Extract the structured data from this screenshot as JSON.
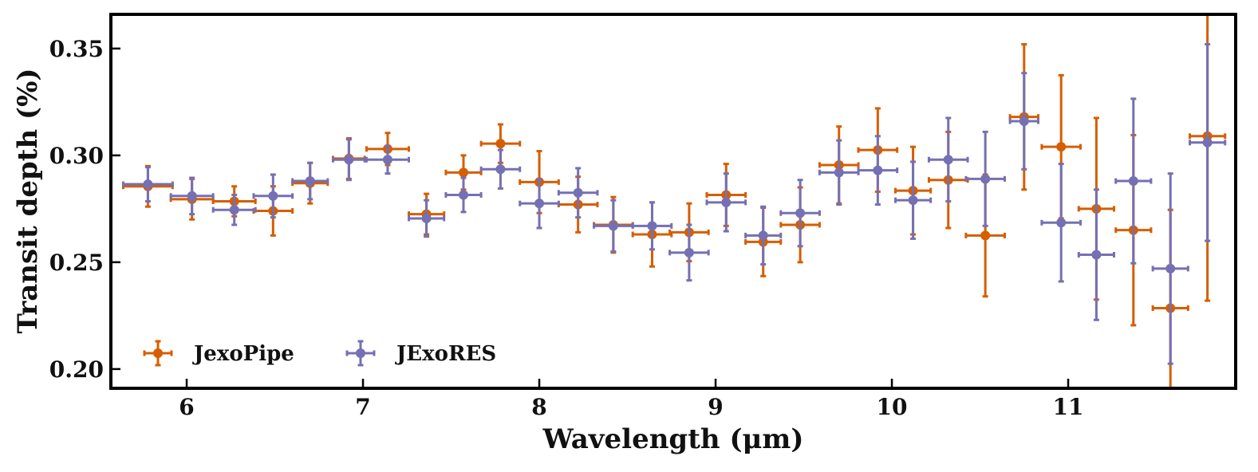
{
  "chart_data": {
    "type": "scatter",
    "xlabel": "Wavelength (μm)",
    "ylabel": "Transit depth (%)",
    "xlim": [
      5.57,
      11.95
    ],
    "ylim": [
      0.191,
      0.366
    ],
    "xticks": [
      6,
      7,
      8,
      9,
      10,
      11
    ],
    "xtick_labels": [
      "6",
      "7",
      "8",
      "9",
      "10",
      "11"
    ],
    "yticks": [
      0.2,
      0.25,
      0.3,
      0.35
    ],
    "ytick_labels": [
      "0.20",
      "0.25",
      "0.30",
      "0.35"
    ],
    "grid": false,
    "legend_position": "lower-left",
    "series": [
      {
        "name": "JexoPipe",
        "color": "#D55E00",
        "points": [
          {
            "x": 5.78,
            "y": 0.2855,
            "xerr": 0.14,
            "yerr": 0.0095
          },
          {
            "x": 6.03,
            "y": 0.2795,
            "xerr": 0.12,
            "yerr": 0.0095
          },
          {
            "x": 6.27,
            "y": 0.2785,
            "xerr": 0.12,
            "yerr": 0.007
          },
          {
            "x": 6.49,
            "y": 0.274,
            "xerr": 0.11,
            "yerr": 0.0115
          },
          {
            "x": 6.7,
            "y": 0.287,
            "xerr": 0.1,
            "yerr": 0.0095
          },
          {
            "x": 6.92,
            "y": 0.2985,
            "xerr": 0.09,
            "yerr": 0.0095
          },
          {
            "x": 7.14,
            "y": 0.303,
            "xerr": 0.12,
            "yerr": 0.0075
          },
          {
            "x": 7.36,
            "y": 0.2725,
            "xerr": 0.1,
            "yerr": 0.0095
          },
          {
            "x": 7.57,
            "y": 0.292,
            "xerr": 0.1,
            "yerr": 0.008
          },
          {
            "x": 7.78,
            "y": 0.3055,
            "xerr": 0.11,
            "yerr": 0.009
          },
          {
            "x": 8.0,
            "y": 0.2875,
            "xerr": 0.11,
            "yerr": 0.0145
          },
          {
            "x": 8.22,
            "y": 0.277,
            "xerr": 0.11,
            "yerr": 0.013
          },
          {
            "x": 8.42,
            "y": 0.2675,
            "xerr": 0.11,
            "yerr": 0.013
          },
          {
            "x": 8.64,
            "y": 0.263,
            "xerr": 0.11,
            "yerr": 0.015
          },
          {
            "x": 8.85,
            "y": 0.264,
            "xerr": 0.11,
            "yerr": 0.0135
          },
          {
            "x": 9.06,
            "y": 0.2815,
            "xerr": 0.11,
            "yerr": 0.0145
          },
          {
            "x": 9.27,
            "y": 0.2595,
            "xerr": 0.1,
            "yerr": 0.016
          },
          {
            "x": 9.48,
            "y": 0.2675,
            "xerr": 0.11,
            "yerr": 0.0175
          },
          {
            "x": 9.7,
            "y": 0.2955,
            "xerr": 0.11,
            "yerr": 0.018
          },
          {
            "x": 9.92,
            "y": 0.3025,
            "xerr": 0.11,
            "yerr": 0.0195
          },
          {
            "x": 10.12,
            "y": 0.2835,
            "xerr": 0.1,
            "yerr": 0.0205
          },
          {
            "x": 10.32,
            "y": 0.2885,
            "xerr": 0.11,
            "yerr": 0.0225
          },
          {
            "x": 10.53,
            "y": 0.2625,
            "xerr": 0.11,
            "yerr": 0.0285
          },
          {
            "x": 10.75,
            "y": 0.318,
            "xerr": 0.08,
            "yerr": 0.034
          },
          {
            "x": 10.96,
            "y": 0.304,
            "xerr": 0.11,
            "yerr": 0.0335
          },
          {
            "x": 11.16,
            "y": 0.275,
            "xerr": 0.1,
            "yerr": 0.0425
          },
          {
            "x": 11.37,
            "y": 0.265,
            "xerr": 0.1,
            "yerr": 0.0445
          },
          {
            "x": 11.58,
            "y": 0.2285,
            "xerr": 0.1,
            "yerr": 0.046
          },
          {
            "x": 11.79,
            "y": 0.309,
            "xerr": 0.1,
            "yerr": 0.077
          }
        ]
      },
      {
        "name": "JExoRES",
        "color": "#7570B3",
        "points": [
          {
            "x": 5.78,
            "y": 0.2865,
            "xerr": 0.14,
            "yerr": 0.008
          },
          {
            "x": 6.03,
            "y": 0.281,
            "xerr": 0.12,
            "yerr": 0.0085
          },
          {
            "x": 6.27,
            "y": 0.2745,
            "xerr": 0.12,
            "yerr": 0.007
          },
          {
            "x": 6.49,
            "y": 0.281,
            "xerr": 0.11,
            "yerr": 0.01
          },
          {
            "x": 6.7,
            "y": 0.288,
            "xerr": 0.1,
            "yerr": 0.0085
          },
          {
            "x": 6.92,
            "y": 0.298,
            "xerr": 0.09,
            "yerr": 0.0095
          },
          {
            "x": 7.14,
            "y": 0.298,
            "xerr": 0.12,
            "yerr": 0.0065
          },
          {
            "x": 7.36,
            "y": 0.2705,
            "xerr": 0.1,
            "yerr": 0.0085
          },
          {
            "x": 7.57,
            "y": 0.2815,
            "xerr": 0.1,
            "yerr": 0.008
          },
          {
            "x": 7.78,
            "y": 0.2935,
            "xerr": 0.11,
            "yerr": 0.009
          },
          {
            "x": 8.0,
            "y": 0.2775,
            "xerr": 0.11,
            "yerr": 0.0115
          },
          {
            "x": 8.22,
            "y": 0.2825,
            "xerr": 0.11,
            "yerr": 0.0115
          },
          {
            "x": 8.42,
            "y": 0.267,
            "xerr": 0.11,
            "yerr": 0.012
          },
          {
            "x": 8.64,
            "y": 0.267,
            "xerr": 0.11,
            "yerr": 0.011
          },
          {
            "x": 8.85,
            "y": 0.2545,
            "xerr": 0.11,
            "yerr": 0.013
          },
          {
            "x": 9.06,
            "y": 0.278,
            "xerr": 0.11,
            "yerr": 0.0135
          },
          {
            "x": 9.27,
            "y": 0.2625,
            "xerr": 0.1,
            "yerr": 0.0135
          },
          {
            "x": 9.48,
            "y": 0.273,
            "xerr": 0.11,
            "yerr": 0.0155
          },
          {
            "x": 9.7,
            "y": 0.292,
            "xerr": 0.11,
            "yerr": 0.015
          },
          {
            "x": 9.92,
            "y": 0.293,
            "xerr": 0.11,
            "yerr": 0.016
          },
          {
            "x": 10.12,
            "y": 0.279,
            "xerr": 0.1,
            "yerr": 0.018
          },
          {
            "x": 10.32,
            "y": 0.298,
            "xerr": 0.11,
            "yerr": 0.0195
          },
          {
            "x": 10.53,
            "y": 0.289,
            "xerr": 0.11,
            "yerr": 0.022
          },
          {
            "x": 10.75,
            "y": 0.316,
            "xerr": 0.08,
            "yerr": 0.0225
          },
          {
            "x": 10.96,
            "y": 0.2685,
            "xerr": 0.11,
            "yerr": 0.0275
          },
          {
            "x": 11.16,
            "y": 0.2535,
            "xerr": 0.1,
            "yerr": 0.0305
          },
          {
            "x": 11.37,
            "y": 0.288,
            "xerr": 0.1,
            "yerr": 0.0385
          },
          {
            "x": 11.58,
            "y": 0.247,
            "xerr": 0.1,
            "yerr": 0.0445
          },
          {
            "x": 11.79,
            "y": 0.306,
            "xerr": 0.1,
            "yerr": 0.046
          }
        ]
      }
    ]
  }
}
